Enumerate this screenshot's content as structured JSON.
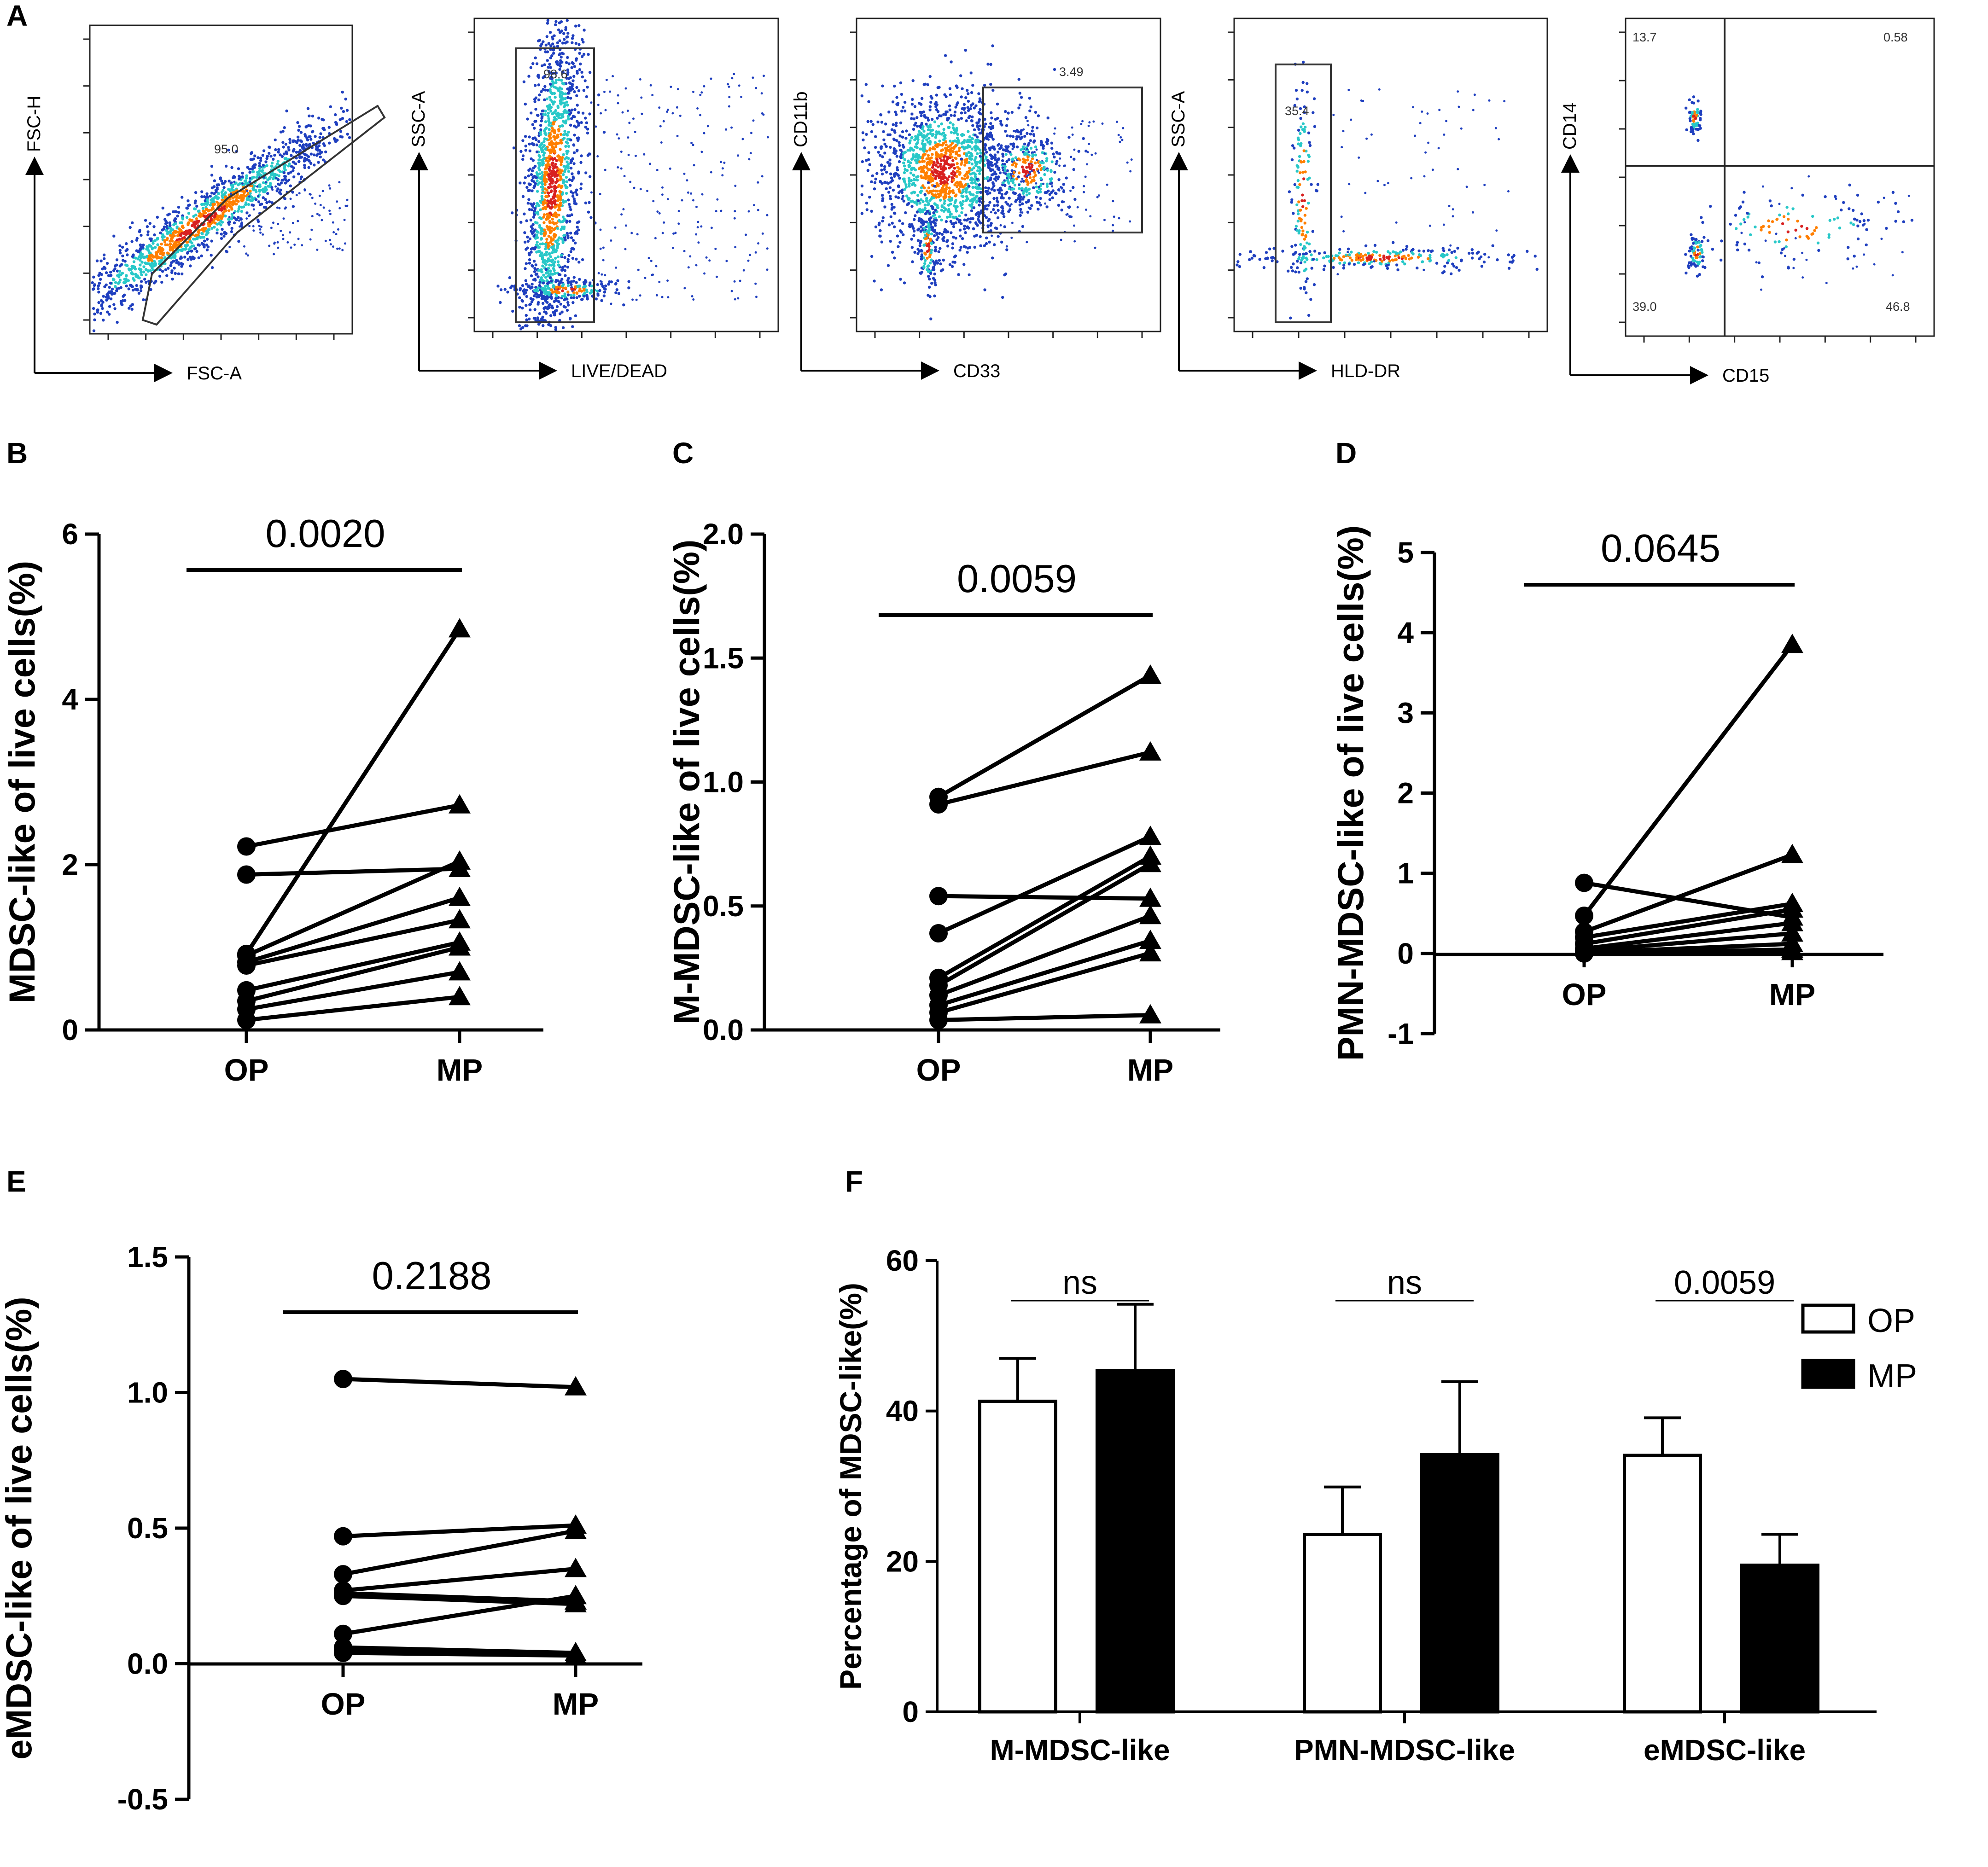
{
  "panel_letters": {
    "a": "A",
    "b": "B",
    "c": "C",
    "d": "D",
    "e": "E",
    "f": "F"
  },
  "colors": {
    "ink": "#000000",
    "op_fill": "#ffffff",
    "mp_fill": "#000000",
    "flow_low": "#1f3fbf",
    "flow_mid": "#28c8c8",
    "flow_high": "#ff7f00",
    "flow_peak": "#d82020"
  },
  "chart_data": [
    {
      "type": "flow_cytometry_gating",
      "panel": "A",
      "plots": [
        {
          "xlabel": "FSC-A",
          "ylabel": "FSC-H",
          "gate_value": "95.0"
        },
        {
          "xlabel": "LIVE/DEAD",
          "ylabel": "SSC-A",
          "gate_value": "98.6"
        },
        {
          "xlabel": "CD33",
          "ylabel": "CD11b",
          "gate_value": "3.49"
        },
        {
          "xlabel": "HLD-DR",
          "ylabel": "SSC-A",
          "gate_value": "35.4"
        },
        {
          "xlabel": "CD15",
          "ylabel": "CD14",
          "quadrants": {
            "top_left": "13.7",
            "top_right": "0.58",
            "bottom_left": "39.0",
            "bottom_right": "46.8"
          }
        }
      ]
    },
    {
      "type": "paired_line",
      "panel": "B",
      "ylabel": "MDSC-like of live cells(%)",
      "categories": [
        "OP",
        "MP"
      ],
      "ylim": [
        0,
        6
      ],
      "yticks": [
        0,
        2,
        4,
        6
      ],
      "ytick_labels": [
        "0",
        "2",
        "4",
        "6"
      ],
      "p_value": "0.0020",
      "pairs": [
        [
          2.22,
          2.72
        ],
        [
          1.88,
          1.95
        ],
        [
          0.92,
          4.85
        ],
        [
          0.9,
          2.04
        ],
        [
          0.82,
          1.6
        ],
        [
          0.78,
          1.33
        ],
        [
          0.48,
          1.06
        ],
        [
          0.35,
          1.0
        ],
        [
          0.25,
          0.7
        ],
        [
          0.12,
          0.4
        ]
      ]
    },
    {
      "type": "paired_line",
      "panel": "C",
      "ylabel": "M-MDSC-like of live cells(%)",
      "categories": [
        "OP",
        "MP"
      ],
      "ylim": [
        0,
        2.0
      ],
      "yticks": [
        0,
        0.5,
        1.0,
        1.5,
        2.0
      ],
      "ytick_labels": [
        "0.0",
        "0.5",
        "1.0",
        "1.5",
        "2.0"
      ],
      "p_value": "0.0059",
      "pairs": [
        [
          0.94,
          1.43
        ],
        [
          0.91,
          1.12
        ],
        [
          0.54,
          0.53
        ],
        [
          0.39,
          0.78
        ],
        [
          0.21,
          0.7
        ],
        [
          0.18,
          0.67
        ],
        [
          0.14,
          0.46
        ],
        [
          0.1,
          0.36
        ],
        [
          0.07,
          0.31
        ],
        [
          0.04,
          0.06
        ]
      ]
    },
    {
      "type": "paired_line",
      "panel": "D",
      "ylabel": "PMN-MDSC-like of live cells(%)",
      "categories": [
        "OP",
        "MP"
      ],
      "ylim": [
        -1,
        5
      ],
      "yticks": [
        -1,
        0,
        1,
        2,
        3,
        4,
        5
      ],
      "ytick_labels": [
        "-1",
        "0",
        "1",
        "2",
        "3",
        "4",
        "5"
      ],
      "p_value": "0.0645",
      "pairs": [
        [
          0.88,
          0.45
        ],
        [
          0.47,
          3.85
        ],
        [
          0.27,
          1.23
        ],
        [
          0.2,
          0.62
        ],
        [
          0.12,
          0.55
        ],
        [
          0.06,
          0.38
        ],
        [
          0.03,
          0.25
        ],
        [
          0.01,
          0.12
        ],
        [
          0.0,
          0.05
        ],
        [
          0.0,
          0.02
        ]
      ]
    },
    {
      "type": "paired_line",
      "panel": "E",
      "ylabel": "eMDSC-like of live cells(%)",
      "categories": [
        "OP",
        "MP"
      ],
      "ylim": [
        -0.5,
        1.5
      ],
      "yticks": [
        -0.5,
        0,
        0.5,
        1.0,
        1.5
      ],
      "ytick_labels": [
        "-0.5",
        "0.0",
        "0.5",
        "1.0",
        "1.5"
      ],
      "p_value": "0.2188",
      "pairs": [
        [
          1.05,
          1.02
        ],
        [
          0.47,
          0.51
        ],
        [
          0.33,
          0.49
        ],
        [
          0.27,
          0.35
        ],
        [
          0.26,
          0.23
        ],
        [
          0.25,
          0.22
        ],
        [
          0.11,
          0.25
        ],
        [
          0.06,
          0.04
        ],
        [
          0.05,
          0.03
        ],
        [
          0.04,
          0.03
        ]
      ]
    },
    {
      "type": "bar",
      "panel": "F",
      "ylabel": "Percentage of MDSC-like(%)",
      "categories": [
        "M-MDSC-like",
        "PMN-MDSC-like",
        "eMDSC-like"
      ],
      "ylim": [
        0,
        60
      ],
      "yticks": [
        0,
        20,
        40,
        60
      ],
      "ytick_labels": [
        "0",
        "20",
        "40",
        "60"
      ],
      "series": [
        {
          "name": "OP",
          "values": [
            41.3,
            23.6,
            34.1
          ],
          "errors": [
            5.7,
            6.3,
            5.0
          ]
        },
        {
          "name": "MP",
          "values": [
            45.4,
            34.2,
            19.5
          ],
          "errors": [
            8.8,
            9.7,
            4.1
          ]
        }
      ],
      "significance": [
        "ns",
        "ns",
        "0.0059"
      ],
      "legend": [
        "OP",
        "MP"
      ]
    }
  ]
}
